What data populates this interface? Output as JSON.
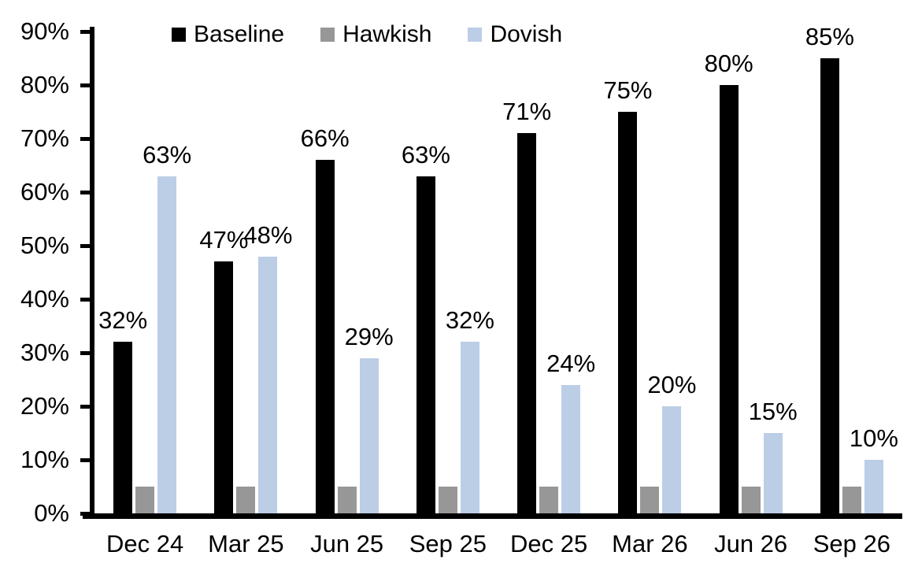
{
  "chart_data": {
    "type": "bar",
    "categories": [
      "Dec 24",
      "Mar 25",
      "Jun 25",
      "Sep 25",
      "Dec 25",
      "Mar 26",
      "Jun 26",
      "Sep 26"
    ],
    "series": [
      {
        "name": "Baseline",
        "color": "#000000",
        "values": [
          32,
          47,
          66,
          63,
          71,
          75,
          80,
          85
        ],
        "labels": [
          "32%",
          "47%",
          "66%",
          "63%",
          "71%",
          "75%",
          "80%",
          "85%"
        ]
      },
      {
        "name": "Hawkish",
        "color": "#979797",
        "values": [
          5,
          5,
          5,
          5,
          5,
          5,
          5,
          5
        ],
        "labels": [
          "",
          "",
          "",
          "",
          "",
          "",
          "",
          ""
        ]
      },
      {
        "name": "Dovish",
        "color": "#bccde6",
        "values": [
          63,
          48,
          29,
          32,
          24,
          20,
          15,
          10
        ],
        "labels": [
          "63%",
          "48%",
          "29%",
          "32%",
          "24%",
          "20%",
          "15%",
          "10%"
        ]
      }
    ],
    "title": "",
    "xlabel": "",
    "ylabel": "",
    "ylim": [
      0,
      90
    ],
    "y_tick_step": 10,
    "y_ticks": [
      "0%",
      "10%",
      "20%",
      "30%",
      "40%",
      "50%",
      "60%",
      "70%",
      "80%",
      "90%"
    ],
    "grid": false,
    "legend_position": "top"
  },
  "legend": {
    "items": [
      {
        "label": "Baseline",
        "color": "#000000"
      },
      {
        "label": "Hawkish",
        "color": "#979797"
      },
      {
        "label": "Dovish",
        "color": "#bccde6"
      }
    ]
  }
}
